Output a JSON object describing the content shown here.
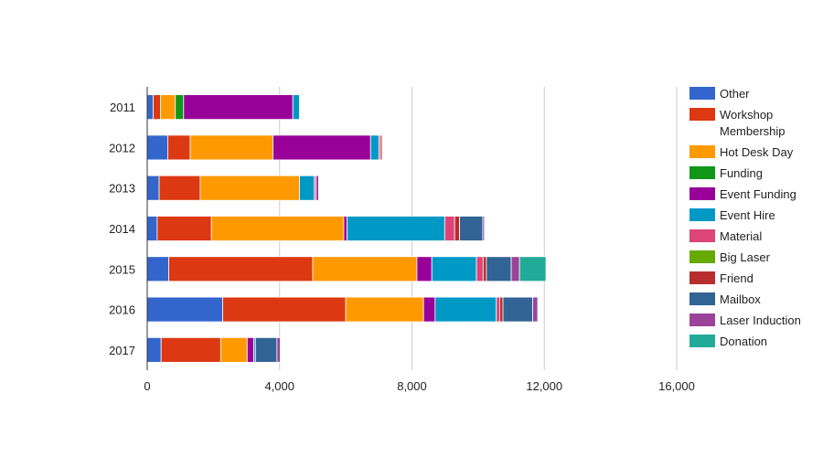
{
  "chart_data": {
    "type": "bar",
    "orientation": "horizontal",
    "stacked": true,
    "title": "",
    "xlabel": "",
    "ylabel": "",
    "xlim": [
      0,
      16000
    ],
    "x_ticks": [
      "0",
      "4,000",
      "8,000",
      "12,000",
      "16,000"
    ],
    "x_tick_values": [
      0,
      4000,
      8000,
      12000,
      16000
    ],
    "grid": true,
    "legend_position": "right",
    "categories": [
      "2011",
      "2012",
      "2013",
      "2014",
      "2015",
      "2016",
      "2017"
    ],
    "series": [
      {
        "name": "Other",
        "color": "#3366cc",
        "values": [
          180,
          620,
          360,
          300,
          650,
          2280,
          420
        ]
      },
      {
        "name": "Workshop Membership",
        "color": "#dc3912",
        "values": [
          220,
          680,
          1240,
          1640,
          4350,
          3720,
          1800
        ]
      },
      {
        "name": "Hot Desk Day",
        "color": "#ff9900",
        "values": [
          450,
          2500,
          3000,
          4000,
          3150,
          2350,
          800
        ]
      },
      {
        "name": "Funding",
        "color": "#109618",
        "values": [
          250,
          0,
          0,
          0,
          0,
          0,
          0
        ]
      },
      {
        "name": "Event Funding",
        "color": "#990099",
        "values": [
          3300,
          2950,
          0,
          100,
          450,
          350,
          200
        ]
      },
      {
        "name": "Event Hire",
        "color": "#0099c6",
        "values": [
          200,
          250,
          450,
          2950,
          1350,
          1850,
          50
        ]
      },
      {
        "name": "Material",
        "color": "#dd4477",
        "values": [
          0,
          50,
          50,
          300,
          200,
          100,
          0
        ]
      },
      {
        "name": "Big Laser",
        "color": "#66aa00",
        "values": [
          0,
          0,
          0,
          0,
          0,
          0,
          0
        ]
      },
      {
        "name": "Friend",
        "color": "#b82e2e",
        "values": [
          0,
          50,
          0,
          150,
          100,
          100,
          0
        ]
      },
      {
        "name": "Mailbox",
        "color": "#316395",
        "values": [
          0,
          0,
          0,
          700,
          750,
          900,
          650
        ]
      },
      {
        "name": "Laser Induction",
        "color": "#994499",
        "values": [
          0,
          0,
          80,
          50,
          250,
          150,
          100
        ]
      },
      {
        "name": "Donation",
        "color": "#22aa99",
        "values": [
          0,
          0,
          0,
          0,
          800,
          0,
          0
        ]
      }
    ]
  }
}
